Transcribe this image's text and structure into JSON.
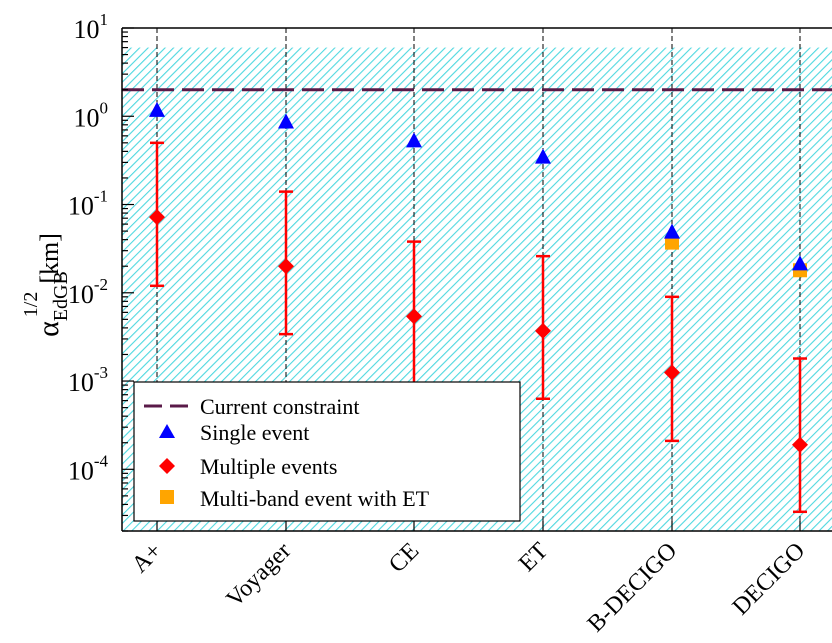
{
  "chart_data": {
    "type": "scatter",
    "yscale": "log",
    "ylim": [
      2e-05,
      10
    ],
    "y_ticks": [
      {
        "base": "10",
        "exp": "-4",
        "value": 0.0001
      },
      {
        "base": "10",
        "exp": "-3",
        "value": 0.001
      },
      {
        "base": "10",
        "exp": "-2",
        "value": 0.01
      },
      {
        "base": "10",
        "exp": "-1",
        "value": 0.1
      },
      {
        "base": "10",
        "exp": "0",
        "value": 1
      },
      {
        "base": "10",
        "exp": "1",
        "value": 10
      }
    ],
    "ylabel": {
      "symbol": "α",
      "subscript": "EdGB",
      "superscript": "1/2",
      "unit": "[km]"
    },
    "categories": [
      "A+",
      "Voyager",
      "CE",
      "ET",
      "B-DECIGO",
      "DECIGO"
    ],
    "current_constraint": 2.0,
    "excluded_region": [
      2e-05,
      6.0
    ],
    "series": [
      {
        "name": "Current constraint",
        "kind": "dashed-line",
        "color": "#5a1a48"
      },
      {
        "name": "Single event",
        "kind": "triangle",
        "color": "#0000ff",
        "values": [
          1.15,
          0.85,
          0.52,
          0.34,
          0.048,
          0.021
        ]
      },
      {
        "name": "Multiple events",
        "kind": "diamond",
        "color": "#ff0000",
        "values": [
          0.072,
          0.02,
          0.0054,
          0.0037,
          0.00125,
          0.00019
        ],
        "err_low": [
          0.012,
          0.0034,
          0.00092,
          0.00063,
          0.00021,
          3.3e-05
        ],
        "err_high": [
          0.5,
          0.14,
          0.038,
          0.026,
          0.009,
          0.0018
        ]
      },
      {
        "name": "Multi-band event with ET",
        "kind": "square",
        "color": "#ffa500",
        "values": [
          null,
          null,
          null,
          null,
          0.037,
          0.018
        ]
      }
    ],
    "legend_position": "bottom-left",
    "colors": {
      "hatch": "#4fd8e0",
      "frame": "#000000"
    }
  }
}
